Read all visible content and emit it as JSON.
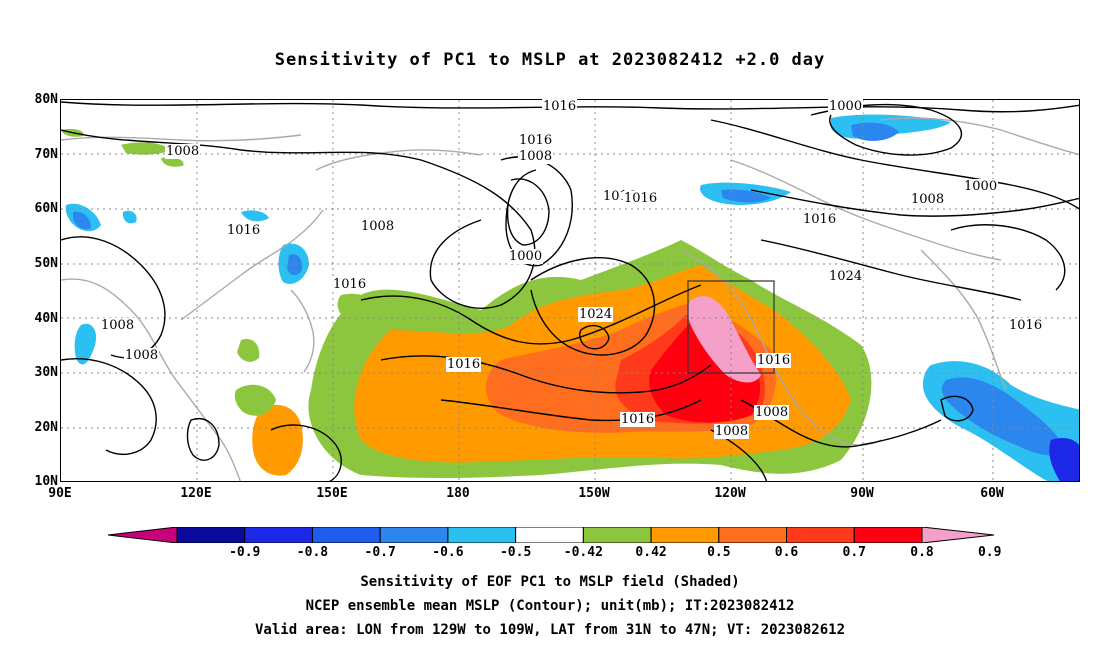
{
  "title": "Sensitivity of PC1 to MSLP at 2023082412 +2.0 day",
  "latitude_labels": [
    "80N",
    "70N",
    "60N",
    "50N",
    "40N",
    "30N",
    "20N",
    "10N"
  ],
  "longitude_labels": [
    "90E",
    "120E",
    "150E",
    "180",
    "150W",
    "120W",
    "90W",
    "60W"
  ],
  "contour_labels": [
    "1016",
    "1000",
    "1016",
    "1008",
    "1008",
    "1016",
    "1008",
    "1016",
    "1000",
    "1016",
    "1000",
    "1008",
    "1016",
    "1024",
    "1024",
    "1016",
    "1008",
    "1016",
    "1008",
    "1008",
    "1016",
    "1016",
    "1008",
    "1016"
  ],
  "colorbar": {
    "labels": [
      "-0.9",
      "-0.8",
      "-0.7",
      "-0.6",
      "-0.5",
      "-0.42",
      "0.42",
      "0.5",
      "0.6",
      "0.7",
      "0.8",
      "0.9"
    ],
    "colors": [
      "#c8007c",
      "#0a0a9c",
      "#1c28e6",
      "#1f5cf0",
      "#2b86ee",
      "#2cc0f2",
      "#ffffff",
      "#8cc63f",
      "#ff9a00",
      "#ff6e1e",
      "#ff3a1a",
      "#ff0010",
      "#f5a0c8"
    ]
  },
  "captions": [
    "Sensitivity of EOF PC1 to MSLP field (Shaded)",
    "NCEP ensemble mean MSLP (Contour); unit(mb); IT:2023082412",
    "Valid area: LON from 129W to 109W, LAT from 31N to 47N; VT: 2023082612"
  ]
}
